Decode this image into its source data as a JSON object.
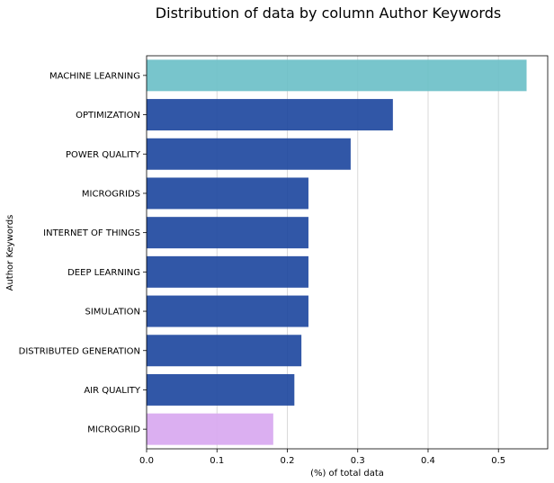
{
  "chart_data": {
    "type": "bar",
    "orientation": "horizontal",
    "title": "Distribution of data by column Author Keywords",
    "xlabel": "(%) of total data",
    "ylabel": "Author Keywords",
    "categories": [
      "MACHINE LEARNING",
      "OPTIMIZATION",
      "POWER QUALITY",
      "MICROGRIDS",
      "INTERNET OF THINGS",
      "DEEP LEARNING",
      "SIMULATION",
      "DISTRIBUTED GENERATION",
      "AIR QUALITY",
      "MICROGRID"
    ],
    "values": [
      0.54,
      0.35,
      0.29,
      0.23,
      0.23,
      0.23,
      0.23,
      0.22,
      0.21,
      0.18
    ],
    "bar_colors": [
      "#6cc0c8",
      "#1f49a0",
      "#1f49a0",
      "#1f49a0",
      "#1f49a0",
      "#1f49a0",
      "#1f49a0",
      "#1f49a0",
      "#1f49a0",
      "#d8a8f0"
    ],
    "xlim": [
      0,
      0.57
    ],
    "xticks": [
      0.0,
      0.1,
      0.2,
      0.3,
      0.4,
      0.5
    ],
    "xtick_labels": [
      "0.0",
      "0.1",
      "0.2",
      "0.3",
      "0.4",
      "0.5"
    ],
    "grid": "vertical"
  }
}
